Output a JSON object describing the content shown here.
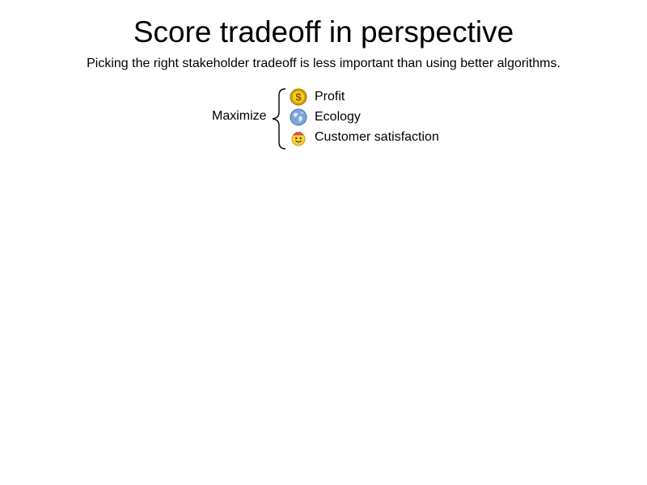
{
  "slide": {
    "title": "Score tradeoff in perspective",
    "subtitle": "Picking the right stakeholder tradeoff is less important than using better algorithms.",
    "maximize_label": "Maximize",
    "objectives": [
      {
        "label": "Profit",
        "icon": "dollar-coin-icon"
      },
      {
        "label": "Ecology",
        "icon": "globe-icon"
      },
      {
        "label": "Customer satisfaction",
        "icon": "smiley-icon"
      }
    ]
  },
  "colors": {
    "coin_gold": "#f2c200",
    "globe_blue": "#6d9bd6",
    "smiley_yellow": "#f7d04a",
    "hat_red": "#e2523a"
  }
}
